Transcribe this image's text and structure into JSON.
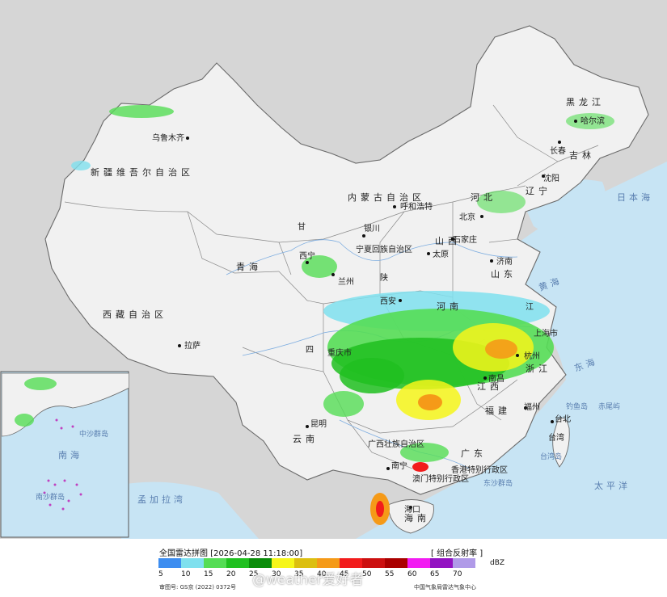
{
  "map": {
    "regions": {
      "xinjiang": "新疆维吾尔自治区",
      "xizang": "西藏自治区",
      "qinghai": "青海",
      "gansu": "甘",
      "sichuan": "四",
      "yunnan": "云南",
      "neimenggu": "内蒙古自治区",
      "heilongjiang": "黑龙江",
      "jilin": "吉林",
      "liaoning": "辽宁",
      "hebei": "河北",
      "shanxi": "山西",
      "shandong": "山东",
      "shaanxi": "陕",
      "henan": "河南",
      "jiangsu": "江",
      "zhejiang": "浙江",
      "fujian": "福建",
      "jiangxi": "江西",
      "guangdong": "广东",
      "guangxi": "广西壮族自治区",
      "hainan": "海南",
      "taiwan": "台湾",
      "hongkong": "香港特别行政区",
      "macau": "澳门特别行政区",
      "shanghai": "上海市",
      "ningxia": "宁夏回族自治区",
      "chongqing": "重庆市"
    },
    "cities": {
      "urumqi": "乌鲁木齐",
      "lhasa": "拉萨",
      "xining": "西宁",
      "lanzhou": "兰州",
      "yinchuan": "银川",
      "hohhot": "呼和浩特",
      "beijing": "北京",
      "shijiazhuang": "石家庄",
      "taiyuan": "太原",
      "jinan": "济南",
      "xian": "西安",
      "harbin": "哈尔滨",
      "changchun": "长春",
      "shenyang": "沈阳",
      "hangzhou": "杭州",
      "nanchang": "南昌",
      "fuzhou": "福州",
      "taipei": "台北",
      "kunming": "昆明",
      "nanning": "南宁",
      "haikou": "海口"
    },
    "seas": {
      "japan_sea": "日本海",
      "yellow_sea": "黄海",
      "east_sea": "东海",
      "pacific": "太平洋",
      "bay_of_bengal": "孟加拉湾",
      "south_sea": "南海"
    },
    "islands": {
      "diaoyu": "钓鱼岛",
      "chiwei": "赤尾屿",
      "taiwan_island": "台湾岛",
      "dongsha": "东沙群岛"
    },
    "inset": {
      "sea": "南海",
      "zhongsha": "中沙群岛",
      "nansha": "南沙群岛"
    }
  },
  "footer": {
    "title": "全国雷达拼图 [2026-04-28 11:18:00]",
    "product": "[ 组合反射率 ]",
    "unit": "dBZ",
    "review": "审图号: GS京 (2022) 0372号",
    "agency": "中国气象局雷达气象中心",
    "watermark": "@weather爱好者"
  },
  "legend": {
    "colors": [
      "#3d8df0",
      "#7fe0ee",
      "#55dd55",
      "#20c020",
      "#0a8c0a",
      "#f6f61a",
      "#dcbf10",
      "#f59a18",
      "#f21c1c",
      "#cc1010",
      "#aa0000",
      "#f21cf2",
      "#9312c2",
      "#b09ae8"
    ],
    "ticks": [
      "5",
      "10",
      "15",
      "20",
      "25",
      "30",
      "35",
      "40",
      "45",
      "50",
      "55",
      "60",
      "65",
      "70"
    ]
  }
}
